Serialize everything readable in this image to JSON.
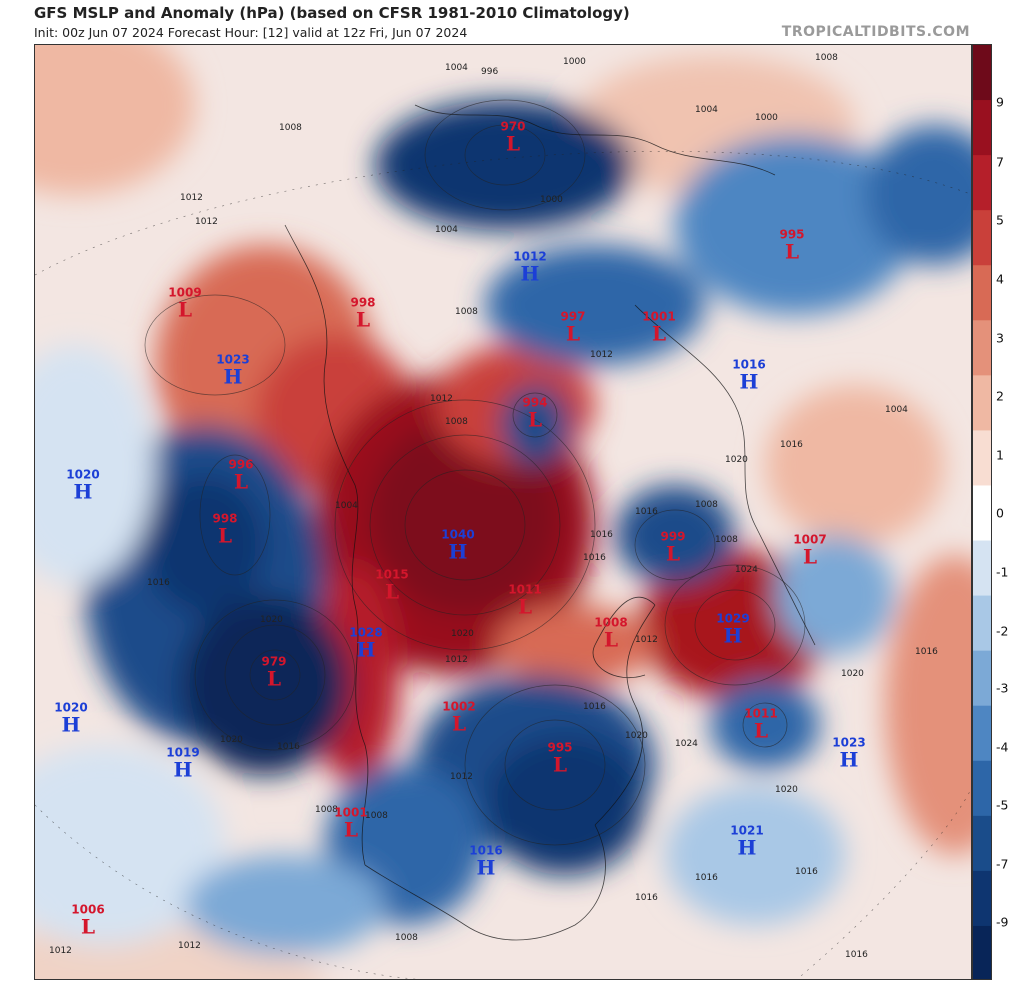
{
  "header": {
    "title": "GFS MSLP and Anomaly (hPa) (based on CFSR 1981-2010 Climatology)",
    "subtitle": "Init: 00z Jun 07 2024   Forecast Hour: [12]   valid at 12z Fri, Jun 07 2024",
    "brand": "TROPICALTIDBITS.COM"
  },
  "colors": {
    "low": "#d4162c",
    "high": "#1c3fd6",
    "deep_red": "#8e0a1e",
    "deep_blue": "#0b2c66"
  },
  "colorbar": {
    "labels": [
      "9",
      "7",
      "5",
      "4",
      "3",
      "2",
      "1",
      "0",
      "-1",
      "-2",
      "-3",
      "-4",
      "-5",
      "-7",
      "-9"
    ],
    "colors": [
      "#6e0a1a",
      "#99101f",
      "#b51f2a",
      "#c9403a",
      "#d86a55",
      "#e4917a",
      "#efb8a3",
      "#f8ddd2",
      "#ffffff",
      "#d5e3f2",
      "#a9c8e6",
      "#7ca9d6",
      "#4e86c2",
      "#2d66a8",
      "#1a4c8a",
      "#0e3570",
      "#082558"
    ]
  },
  "pressure_centers": [
    {
      "type": "L",
      "value": "970"
    },
    {
      "type": "L",
      "value": "995"
    },
    {
      "type": "H",
      "value": "1012"
    },
    {
      "type": "L",
      "value": "1009"
    },
    {
      "type": "L",
      "value": "998"
    },
    {
      "type": "L",
      "value": "997"
    },
    {
      "type": "L",
      "value": "1001"
    },
    {
      "type": "H",
      "value": "1023"
    },
    {
      "type": "H",
      "value": "1016"
    },
    {
      "type": "L",
      "value": "994"
    },
    {
      "type": "H",
      "value": "1020"
    },
    {
      "type": "L",
      "value": "996"
    },
    {
      "type": "L",
      "value": "998"
    },
    {
      "type": "H",
      "value": "1040"
    },
    {
      "type": "L",
      "value": "999"
    },
    {
      "type": "L",
      "value": "1007"
    },
    {
      "type": "L",
      "value": "1015"
    },
    {
      "type": "L",
      "value": "1011"
    },
    {
      "type": "L",
      "value": "1008"
    },
    {
      "type": "H",
      "value": "1029"
    },
    {
      "type": "H",
      "value": "1028"
    },
    {
      "type": "L",
      "value": "979"
    },
    {
      "type": "H",
      "value": "1020"
    },
    {
      "type": "L",
      "value": "1002"
    },
    {
      "type": "L",
      "value": "995"
    },
    {
      "type": "L",
      "value": "1011"
    },
    {
      "type": "H",
      "value": "1023"
    },
    {
      "type": "H",
      "value": "1019"
    },
    {
      "type": "L",
      "value": "1001"
    },
    {
      "type": "H",
      "value": "1021"
    },
    {
      "type": "H",
      "value": "1016"
    },
    {
      "type": "L",
      "value": "1006"
    }
  ],
  "isobar_labels": [
    "1008",
    "1004",
    "996",
    "1000",
    "1004",
    "1000",
    "1012",
    "1012",
    "1008",
    "1004",
    "1008",
    "1000",
    "1004",
    "1012",
    "1016",
    "1020",
    "1016",
    "1008",
    "1004",
    "1008",
    "1012",
    "1016",
    "1012",
    "1016",
    "1016",
    "1024",
    "1008",
    "1012",
    "1020",
    "1024",
    "1016",
    "1020",
    "1020",
    "1008",
    "1016",
    "1016",
    "1012",
    "1020",
    "1016",
    "1020",
    "1016",
    "1008",
    "1012",
    "1016",
    "1016",
    "1012",
    "1008",
    "1020",
    "1016"
  ]
}
